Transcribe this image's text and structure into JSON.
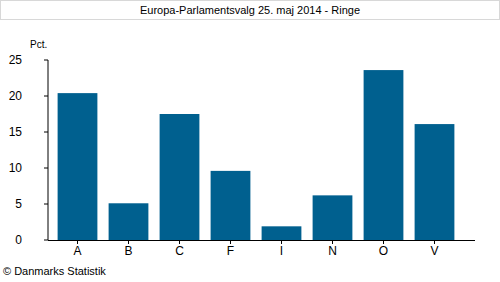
{
  "chart_data": {
    "type": "bar",
    "title": "Europa-Parlamentsvalg 25. maj 2014 - Ringe",
    "y_label": "Pct.",
    "source": "© Danmarks Statistik",
    "categories": [
      "A",
      "B",
      "C",
      "F",
      "I",
      "N",
      "O",
      "V"
    ],
    "values": [
      20.4,
      5.1,
      17.5,
      9.6,
      1.9,
      6.2,
      23.6,
      16.1
    ],
    "color": "#00608f",
    "ylim": [
      0,
      25
    ],
    "yticks": [
      0,
      5,
      10,
      15,
      20,
      25
    ],
    "grid": false
  }
}
